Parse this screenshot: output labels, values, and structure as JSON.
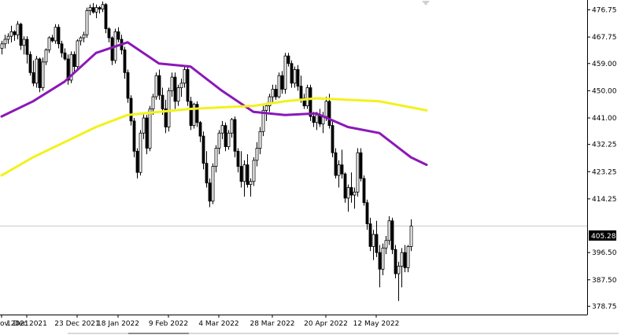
{
  "chart_data": {
    "type": "candlestick",
    "title": "",
    "xlabel": "",
    "ylabel": "",
    "ylim": [
      376,
      480
    ],
    "grid": false,
    "legend": "none",
    "colors": {
      "background": "#ffffff",
      "candle": "#000000",
      "ma_fast": "#8b18b8",
      "ma_slow": "#f2f21c",
      "price_line": "#c8c8c8",
      "price_label_bg": "#000000"
    },
    "y_ticks": [
      "476.75",
      "467.75",
      "459.00",
      "450.00",
      "441.00",
      "432.25",
      "423.25",
      "414.25",
      "396.50",
      "387.50",
      "378.75"
    ],
    "x_ticks": [
      {
        "label": "ov 2021",
        "index": 0
      },
      {
        "label": "1 Dec 2021",
        "index": 8
      },
      {
        "label": "23 Dec 2021",
        "index": 24
      },
      {
        "label": "18 Jan 2022",
        "index": 37
      },
      {
        "label": "9 Feb 2022",
        "index": 53
      },
      {
        "label": "4 Mar 2022",
        "index": 69
      },
      {
        "label": "28 Mar 2022",
        "index": 86
      },
      {
        "label": "20 Apr 2022",
        "index": 103
      },
      {
        "label": "12 May 2022",
        "index": 119
      }
    ],
    "current_price": "405.28",
    "candles": [
      [
        464.0,
        466.5,
        462.0,
        465.5
      ],
      [
        465.5,
        468.5,
        464.0,
        467.0
      ],
      [
        467.0,
        469.0,
        465.5,
        468.0
      ],
      [
        468.0,
        471.5,
        466.0,
        469.5
      ],
      [
        469.5,
        470.0,
        466.5,
        468.5
      ],
      [
        468.5,
        473.0,
        467.0,
        472.0
      ],
      [
        472.0,
        472.5,
        463.5,
        465.0
      ],
      [
        465.0,
        468.0,
        462.0,
        467.0
      ],
      [
        467.0,
        468.0,
        459.0,
        462.0
      ],
      [
        462.0,
        463.0,
        455.0,
        456.0
      ],
      [
        456.0,
        460.0,
        451.5,
        452.5
      ],
      [
        452.5,
        461.5,
        451.0,
        460.5
      ],
      [
        460.5,
        461.0,
        449.5,
        451.0
      ],
      [
        451.0,
        461.0,
        450.0,
        459.5
      ],
      [
        459.5,
        464.0,
        458.5,
        463.5
      ],
      [
        463.5,
        468.0,
        462.5,
        467.5
      ],
      [
        467.5,
        468.5,
        466.0,
        466.5
      ],
      [
        466.5,
        472.0,
        465.5,
        471.0
      ],
      [
        471.0,
        472.0,
        464.0,
        465.5
      ],
      [
        465.5,
        466.5,
        461.0,
        462.5
      ],
      [
        462.5,
        464.0,
        460.0,
        460.5
      ],
      [
        460.5,
        462.0,
        452.0,
        453.5
      ],
      [
        453.5,
        463.0,
        452.5,
        462.0
      ],
      [
        462.0,
        463.0,
        456.0,
        458.0
      ],
      [
        458.0,
        467.0,
        457.0,
        466.5
      ],
      [
        466.5,
        468.0,
        465.0,
        467.5
      ],
      [
        467.5,
        469.5,
        466.0,
        468.5
      ],
      [
        468.5,
        477.5,
        467.5,
        476.5
      ],
      [
        476.5,
        478.5,
        475.0,
        477.5
      ],
      [
        477.5,
        479.0,
        475.5,
        476.0
      ],
      [
        476.0,
        478.5,
        474.0,
        477.5
      ],
      [
        477.5,
        478.0,
        475.5,
        477.0
      ],
      [
        477.0,
        479.5,
        476.0,
        478.5
      ],
      [
        478.5,
        479.0,
        469.0,
        470.5
      ],
      [
        470.5,
        471.0,
        466.0,
        467.5
      ],
      [
        467.5,
        468.0,
        458.5,
        460.0
      ],
      [
        460.0,
        470.5,
        459.0,
        469.5
      ],
      [
        469.5,
        471.0,
        466.0,
        467.0
      ],
      [
        467.0,
        468.5,
        462.0,
        463.5
      ],
      [
        463.5,
        464.5,
        454.0,
        456.0
      ],
      [
        456.0,
        457.0,
        446.0,
        447.5
      ],
      [
        447.5,
        448.5,
        438.5,
        440.0
      ],
      [
        440.0,
        441.0,
        428.0,
        430.0
      ],
      [
        430.0,
        431.0,
        421.0,
        423.0
      ],
      [
        423.0,
        437.0,
        422.0,
        436.0
      ],
      [
        436.0,
        442.5,
        434.0,
        441.0
      ],
      [
        441.0,
        442.0,
        429.0,
        431.0
      ],
      [
        431.0,
        445.0,
        430.0,
        444.0
      ],
      [
        444.0,
        449.0,
        442.0,
        448.0
      ],
      [
        448.0,
        456.0,
        447.0,
        455.0
      ],
      [
        455.0,
        457.0,
        447.0,
        448.5
      ],
      [
        448.5,
        451.0,
        442.0,
        444.0
      ],
      [
        444.0,
        447.0,
        436.0,
        438.0
      ],
      [
        438.0,
        451.0,
        436.5,
        450.0
      ],
      [
        450.0,
        456.0,
        448.0,
        454.5
      ],
      [
        454.5,
        456.0,
        444.0,
        446.5
      ],
      [
        446.5,
        452.0,
        445.0,
        451.0
      ],
      [
        451.0,
        454.0,
        448.0,
        452.5
      ],
      [
        452.5,
        458.0,
        451.0,
        457.0
      ],
      [
        457.0,
        458.5,
        445.0,
        446.5
      ],
      [
        446.5,
        448.0,
        437.0,
        438.5
      ],
      [
        438.5,
        446.0,
        437.5,
        445.5
      ],
      [
        445.5,
        446.5,
        438.0,
        439.5
      ],
      [
        439.5,
        440.0,
        433.0,
        435.0
      ],
      [
        435.0,
        436.5,
        424.0,
        426.0
      ],
      [
        426.0,
        430.0,
        418.0,
        419.5
      ],
      [
        419.5,
        421.0,
        411.5,
        413.5
      ],
      [
        413.5,
        426.0,
        412.5,
        425.0
      ],
      [
        425.0,
        432.0,
        423.0,
        431.0
      ],
      [
        431.0,
        437.0,
        429.0,
        436.0
      ],
      [
        436.0,
        440.0,
        434.0,
        438.5
      ],
      [
        438.5,
        439.5,
        430.0,
        431.5
      ],
      [
        431.5,
        437.0,
        430.5,
        436.0
      ],
      [
        436.0,
        441.0,
        434.5,
        440.5
      ],
      [
        440.5,
        441.5,
        428.0,
        430.0
      ],
      [
        430.0,
        431.0,
        423.0,
        425.0
      ],
      [
        425.0,
        430.0,
        418.0,
        420.0
      ],
      [
        420.0,
        427.0,
        415.0,
        425.5
      ],
      [
        425.5,
        429.0,
        418.0,
        419.0
      ],
      [
        419.0,
        421.0,
        415.0,
        420.0
      ],
      [
        420.0,
        428.0,
        418.5,
        427.0
      ],
      [
        427.0,
        433.0,
        425.0,
        431.0
      ],
      [
        431.0,
        438.0,
        429.0,
        436.5
      ],
      [
        436.5,
        445.0,
        435.0,
        443.5
      ],
      [
        443.5,
        446.0,
        440.0,
        445.0
      ],
      [
        445.0,
        449.0,
        443.0,
        448.0
      ],
      [
        448.0,
        452.0,
        446.0,
        450.5
      ],
      [
        450.5,
        452.0,
        447.0,
        448.0
      ],
      [
        448.0,
        456.0,
        447.5,
        455.0
      ],
      [
        455.0,
        456.5,
        449.0,
        450.5
      ],
      [
        450.5,
        462.5,
        449.0,
        461.5
      ],
      [
        461.5,
        462.5,
        458.0,
        459.0
      ],
      [
        459.0,
        460.0,
        451.0,
        452.5
      ],
      [
        452.5,
        458.0,
        451.0,
        457.0
      ],
      [
        457.0,
        458.5,
        450.0,
        451.5
      ],
      [
        451.5,
        455.0,
        446.0,
        447.5
      ],
      [
        447.5,
        449.0,
        444.0,
        445.0
      ],
      [
        445.0,
        452.0,
        444.0,
        451.0
      ],
      [
        451.0,
        452.0,
        440.0,
        441.5
      ],
      [
        441.5,
        443.0,
        438.0,
        439.5
      ],
      [
        439.5,
        443.0,
        437.0,
        442.0
      ],
      [
        442.0,
        444.0,
        438.0,
        439.0
      ],
      [
        439.0,
        443.0,
        436.0,
        441.5
      ],
      [
        441.5,
        448.0,
        440.0,
        446.5
      ],
      [
        446.5,
        449.0,
        437.5,
        438.5
      ],
      [
        438.5,
        440.0,
        428.0,
        429.5
      ],
      [
        429.5,
        431.0,
        421.0,
        422.0
      ],
      [
        422.0,
        427.0,
        418.0,
        425.5
      ],
      [
        425.5,
        430.5,
        421.0,
        422.5
      ],
      [
        422.5,
        423.0,
        413.0,
        414.5
      ],
      [
        414.5,
        419.0,
        410.0,
        418.0
      ],
      [
        418.0,
        423.0,
        413.0,
        415.5
      ],
      [
        415.5,
        418.0,
        411.0,
        416.5
      ],
      [
        416.5,
        431.0,
        415.0,
        429.5
      ],
      [
        429.5,
        431.0,
        420.0,
        421.0
      ],
      [
        421.0,
        422.0,
        412.0,
        413.0
      ],
      [
        413.0,
        414.0,
        404.0,
        406.0
      ],
      [
        406.0,
        408.0,
        397.0,
        398.5
      ],
      [
        398.5,
        404.0,
        394.0,
        402.5
      ],
      [
        402.5,
        407.0,
        395.0,
        396.5
      ],
      [
        396.5,
        399.0,
        385.0,
        391.0
      ],
      [
        391.0,
        399.5,
        389.0,
        398.0
      ],
      [
        398.0,
        402.0,
        396.0,
        400.5
      ],
      [
        400.5,
        408.5,
        399.0,
        407.0
      ],
      [
        407.0,
        408.0,
        396.0,
        397.5
      ],
      [
        397.5,
        399.0,
        388.0,
        389.5
      ],
      [
        389.5,
        393.5,
        380.5,
        392.0
      ],
      [
        392.0,
        398.0,
        385.0,
        396.5
      ],
      [
        396.5,
        399.0,
        390.0,
        391.5
      ],
      [
        391.5,
        399.0,
        390.0,
        398.5
      ],
      [
        398.5,
        407.5,
        397.0,
        405.28
      ]
    ],
    "series": [
      {
        "type": "line",
        "x": [
          0,
          10,
          20,
          30,
          40,
          50,
          60,
          70,
          80,
          90,
          100,
          110,
          120,
          130,
          135
        ],
        "values": [
          441.5,
          446.5,
          453.0,
          462.5,
          466.0,
          459.0,
          458.0,
          450.0,
          443.0,
          442.0,
          442.5,
          438.0,
          436.0,
          428.0,
          425.5
        ]
      },
      {
        "type": "line",
        "x": [
          0,
          10,
          20,
          30,
          40,
          50,
          60,
          70,
          80,
          90,
          100,
          110,
          120,
          130,
          135
        ],
        "values": [
          422.0,
          428.0,
          433.0,
          438.0,
          442.0,
          443.0,
          444.0,
          444.5,
          445.0,
          446.5,
          447.5,
          447.0,
          446.5,
          444.5,
          443.5
        ]
      }
    ]
  }
}
